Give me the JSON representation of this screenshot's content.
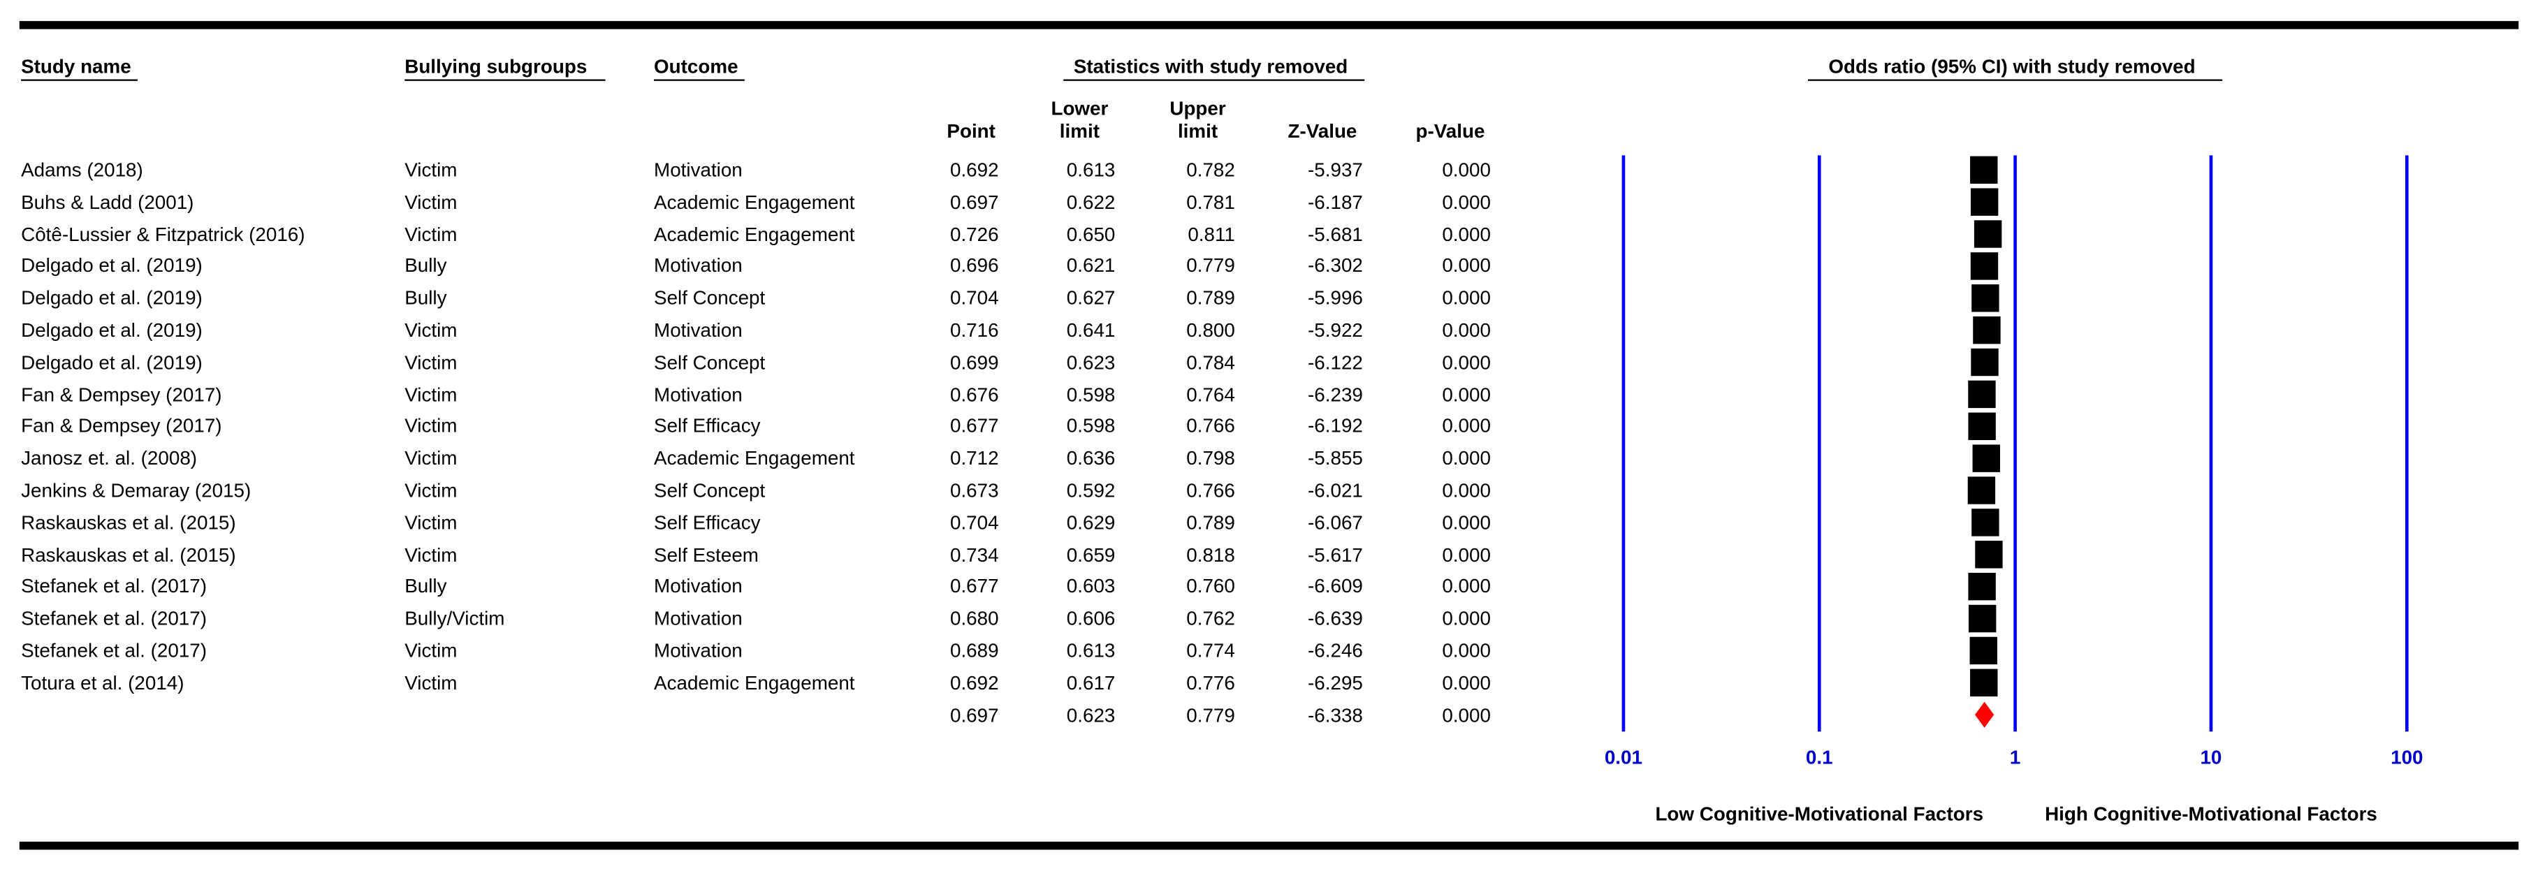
{
  "headers": {
    "study_name": "Study name",
    "subgroups": "Bullying subgroups",
    "outcome": "Outcome",
    "stats_group": "Statistics with study removed",
    "plot_group": "Odds ratio (95% CI) with study removed",
    "point": "Point",
    "lower": "Lower limit",
    "upper": "Upper limit",
    "z": "Z-Value",
    "p": "p-Value"
  },
  "chart_data": {
    "type": "forest",
    "studies": [
      "Adams (2018)",
      "Buhs & Ladd (2001)",
      "Côtê-Lussier & Fitzpatrick  (2016)",
      "Delgado et al. (2019)",
      "Delgado et al. (2019)",
      "Delgado et al. (2019)",
      "Delgado et al. (2019)",
      "Fan & Dempsey (2017)",
      "Fan & Dempsey (2017)",
      "Janosz et. al. (2008)",
      "Jenkins & Demaray (2015)",
      "Raskauskas et al. (2015)",
      "Raskauskas et al. (2015)",
      "Stefanek et al. (2017)",
      "Stefanek et al. (2017)",
      "Stefanek et al. (2017)",
      "Totura et al. (2014)"
    ],
    "subgroups": [
      "Victim",
      "Victim",
      "Victim",
      "Bully",
      "Bully",
      "Victim",
      "Victim",
      "Victim",
      "Victim",
      "Victim",
      "Victim",
      "Victim",
      "Victim",
      "Bully",
      "Bully/Victim",
      "Victim",
      "Victim"
    ],
    "outcomes": [
      "Motivation",
      "Academic Engagement",
      "Academic Engagement",
      "Motivation",
      "Self Concept",
      "Motivation",
      "Self Concept",
      "Motivation",
      "Self Efficacy",
      "Academic Engagement",
      "Self Concept",
      "Self Efficacy",
      "Self Esteem",
      "Motivation",
      "Motivation",
      "Motivation",
      "Academic Engagement"
    ],
    "point": {
      "values": [
        0.692,
        0.697,
        0.726,
        0.696,
        0.704,
        0.716,
        0.699,
        0.676,
        0.677,
        0.712,
        0.673,
        0.704,
        0.734,
        0.677,
        0.68,
        0.689,
        0.692
      ],
      "value_labels": [
        "0.692",
        "0.697",
        "0.726",
        "0.696",
        "0.704",
        "0.716",
        "0.699",
        "0.676",
        "0.677",
        "0.712",
        "0.673",
        "0.704",
        "0.734",
        "0.677",
        "0.680",
        "0.689",
        "0.692"
      ]
    },
    "lower": {
      "values": [
        0.613,
        0.622,
        0.65,
        0.621,
        0.627,
        0.641,
        0.623,
        0.598,
        0.598,
        0.636,
        0.592,
        0.629,
        0.659,
        0.603,
        0.606,
        0.613,
        0.617
      ],
      "value_labels": [
        "0.613",
        "0.622",
        "0.650",
        "0.621",
        "0.627",
        "0.641",
        "0.623",
        "0.598",
        "0.598",
        "0.636",
        "0.592",
        "0.629",
        "0.659",
        "0.603",
        "0.606",
        "0.613",
        "0.617"
      ]
    },
    "upper": {
      "values": [
        0.782,
        0.781,
        0.811,
        0.779,
        0.789,
        0.8,
        0.784,
        0.764,
        0.766,
        0.798,
        0.766,
        0.789,
        0.818,
        0.76,
        0.762,
        0.774,
        0.776
      ],
      "value_labels": [
        "0.782",
        "0.781",
        "0.811",
        "0.779",
        "0.789",
        "0.800",
        "0.784",
        "0.764",
        "0.766",
        "0.798",
        "0.766",
        "0.789",
        "0.818",
        "0.760",
        "0.762",
        "0.774",
        "0.776"
      ]
    },
    "z": {
      "values": [
        -5.937,
        -6.187,
        -5.681,
        -6.302,
        -5.996,
        -5.922,
        -6.122,
        -6.239,
        -6.192,
        -5.855,
        -6.021,
        -6.067,
        -5.617,
        -6.609,
        -6.639,
        -6.246,
        -6.295
      ]
    },
    "p": {
      "values": [
        0,
        0,
        0,
        0,
        0,
        0,
        0,
        0,
        0,
        0,
        0,
        0,
        0,
        0,
        0,
        0,
        0
      ],
      "value_labels": [
        "0.000",
        "0.000",
        "0.000",
        "0.000",
        "0.000",
        "0.000",
        "0.000",
        "0.000",
        "0.000",
        "0.000",
        "0.000",
        "0.000",
        "0.000",
        "0.000",
        "0.000",
        "0.000",
        "0.000"
      ]
    },
    "summary": {
      "point": {
        "value": 0.697,
        "label": "0.697"
      },
      "lower": {
        "value": 0.623,
        "label": "0.623"
      },
      "upper": {
        "value": 0.779,
        "label": "0.779"
      },
      "z": {
        "value": -6.338,
        "label": "-6.338"
      },
      "p": {
        "value": 0,
        "label": "0.000"
      }
    },
    "xlim": [
      0.01,
      100
    ],
    "xticks": [
      0.01,
      0.1,
      1,
      10,
      100
    ],
    "log_scale": true,
    "x_left_label": "Low Cognitive-Motivational Factors",
    "x_right_label": "High Cognitive-Motivational Factors",
    "square_color": "#000000",
    "diamond_color": "#ff0000",
    "grid_color": "#0000ff"
  }
}
